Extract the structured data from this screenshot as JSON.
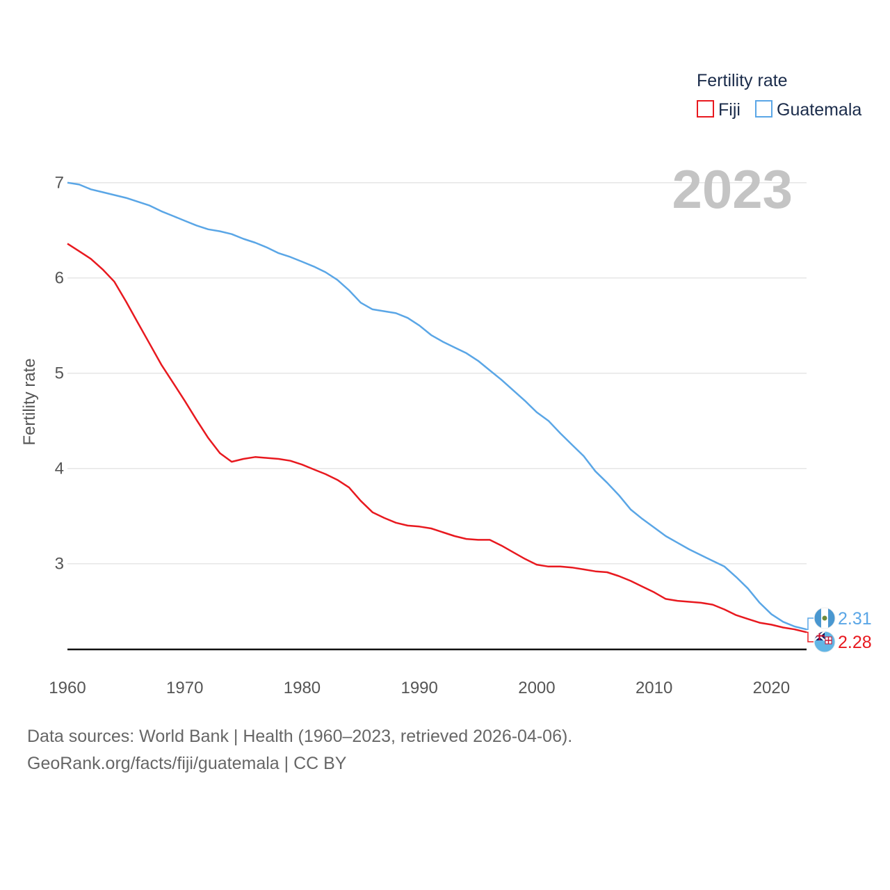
{
  "chart_data": {
    "type": "line",
    "title": "",
    "xlabel": "",
    "ylabel": "Fertility rate",
    "xlim": [
      1960,
      2023
    ],
    "ylim": [
      2.1,
      7.1
    ],
    "x_ticks": [
      1960,
      1970,
      1980,
      1990,
      2000,
      2010,
      2020
    ],
    "y_ticks": [
      3,
      4,
      5,
      6,
      7
    ],
    "legend": {
      "title": "Fertility rate",
      "position": "top-right"
    },
    "year_watermark": "2023",
    "x": [
      1960,
      1961,
      1962,
      1963,
      1964,
      1965,
      1966,
      1967,
      1968,
      1969,
      1970,
      1971,
      1972,
      1973,
      1974,
      1975,
      1976,
      1977,
      1978,
      1979,
      1980,
      1981,
      1982,
      1983,
      1984,
      1985,
      1986,
      1987,
      1988,
      1989,
      1990,
      1991,
      1992,
      1993,
      1994,
      1995,
      1996,
      1997,
      1998,
      1999,
      2000,
      2001,
      2002,
      2003,
      2004,
      2005,
      2006,
      2007,
      2008,
      2009,
      2010,
      2011,
      2012,
      2013,
      2014,
      2015,
      2016,
      2017,
      2018,
      2019,
      2020,
      2021,
      2022,
      2023
    ],
    "series": [
      {
        "name": "Fiji",
        "color": "#e8191f",
        "end_label": "2.28",
        "flag": "fiji-flag",
        "values": [
          6.36,
          6.28,
          6.2,
          6.09,
          5.96,
          5.75,
          5.53,
          5.31,
          5.09,
          4.9,
          4.71,
          4.51,
          4.32,
          4.16,
          4.07,
          4.1,
          4.12,
          4.11,
          4.1,
          4.08,
          4.04,
          3.99,
          3.94,
          3.88,
          3.8,
          3.66,
          3.54,
          3.48,
          3.43,
          3.4,
          3.39,
          3.37,
          3.33,
          3.29,
          3.26,
          3.25,
          3.25,
          3.19,
          3.12,
          3.05,
          2.99,
          2.97,
          2.97,
          2.96,
          2.94,
          2.92,
          2.91,
          2.87,
          2.82,
          2.76,
          2.7,
          2.63,
          2.61,
          2.6,
          2.59,
          2.57,
          2.52,
          2.46,
          2.42,
          2.38,
          2.36,
          2.33,
          2.31,
          2.28
        ]
      },
      {
        "name": "Guatemala",
        "color": "#5aa6e6",
        "end_label": "2.31",
        "flag": "guatemala-flag",
        "values": [
          7.0,
          6.98,
          6.93,
          6.9,
          6.87,
          6.84,
          6.8,
          6.76,
          6.7,
          6.65,
          6.6,
          6.55,
          6.51,
          6.49,
          6.46,
          6.41,
          6.37,
          6.32,
          6.26,
          6.22,
          6.17,
          6.12,
          6.06,
          5.98,
          5.87,
          5.74,
          5.67,
          5.65,
          5.63,
          5.58,
          5.5,
          5.4,
          5.33,
          5.27,
          5.21,
          5.13,
          5.03,
          4.93,
          4.82,
          4.71,
          4.59,
          4.5,
          4.37,
          4.25,
          4.13,
          3.97,
          3.85,
          3.72,
          3.57,
          3.47,
          3.38,
          3.29,
          3.22,
          3.15,
          3.09,
          3.03,
          2.97,
          2.86,
          2.74,
          2.59,
          2.47,
          2.39,
          2.34,
          2.31
        ]
      }
    ],
    "source_lines": [
      "Data sources: World Bank | Health (1960–2023, retrieved 2026-04-06).",
      "GeoRank.org/facts/fiji/guatemala | CC BY"
    ]
  }
}
